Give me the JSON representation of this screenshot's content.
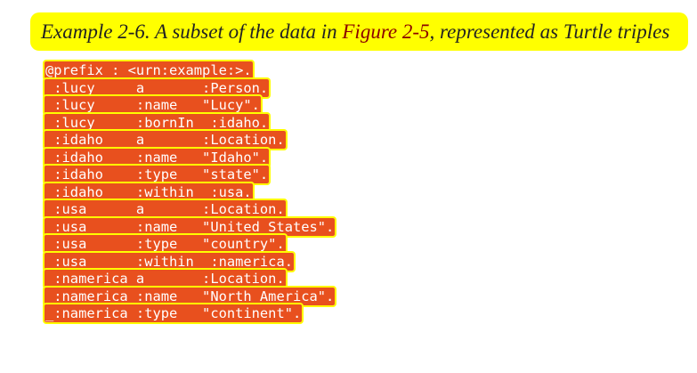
{
  "caption": {
    "label": "Example 2-6. A subset of the data in ",
    "link": "Figure 2-5",
    "rest": ", represented as Turtle triples"
  },
  "code": {
    "lines": [
      "@prefix : <urn:example:>.",
      "_:lucy     a       :Person.",
      "_:lucy     :name   \"Lucy\".",
      "_:lucy     :bornIn _:idaho.",
      "_:idaho    a       :Location.",
      "_:idaho    :name   \"Idaho\".",
      "_:idaho    :type   \"state\".",
      "_:idaho    :within _:usa.",
      "_:usa      a       :Location.",
      "_:usa      :name   \"United States\".",
      "_:usa      :type   \"country\".",
      "_:usa      :within _:namerica.",
      "_:namerica a       :Location.",
      "_:namerica :name   \"North America\".",
      "_:namerica :type   \"continent\"."
    ]
  }
}
